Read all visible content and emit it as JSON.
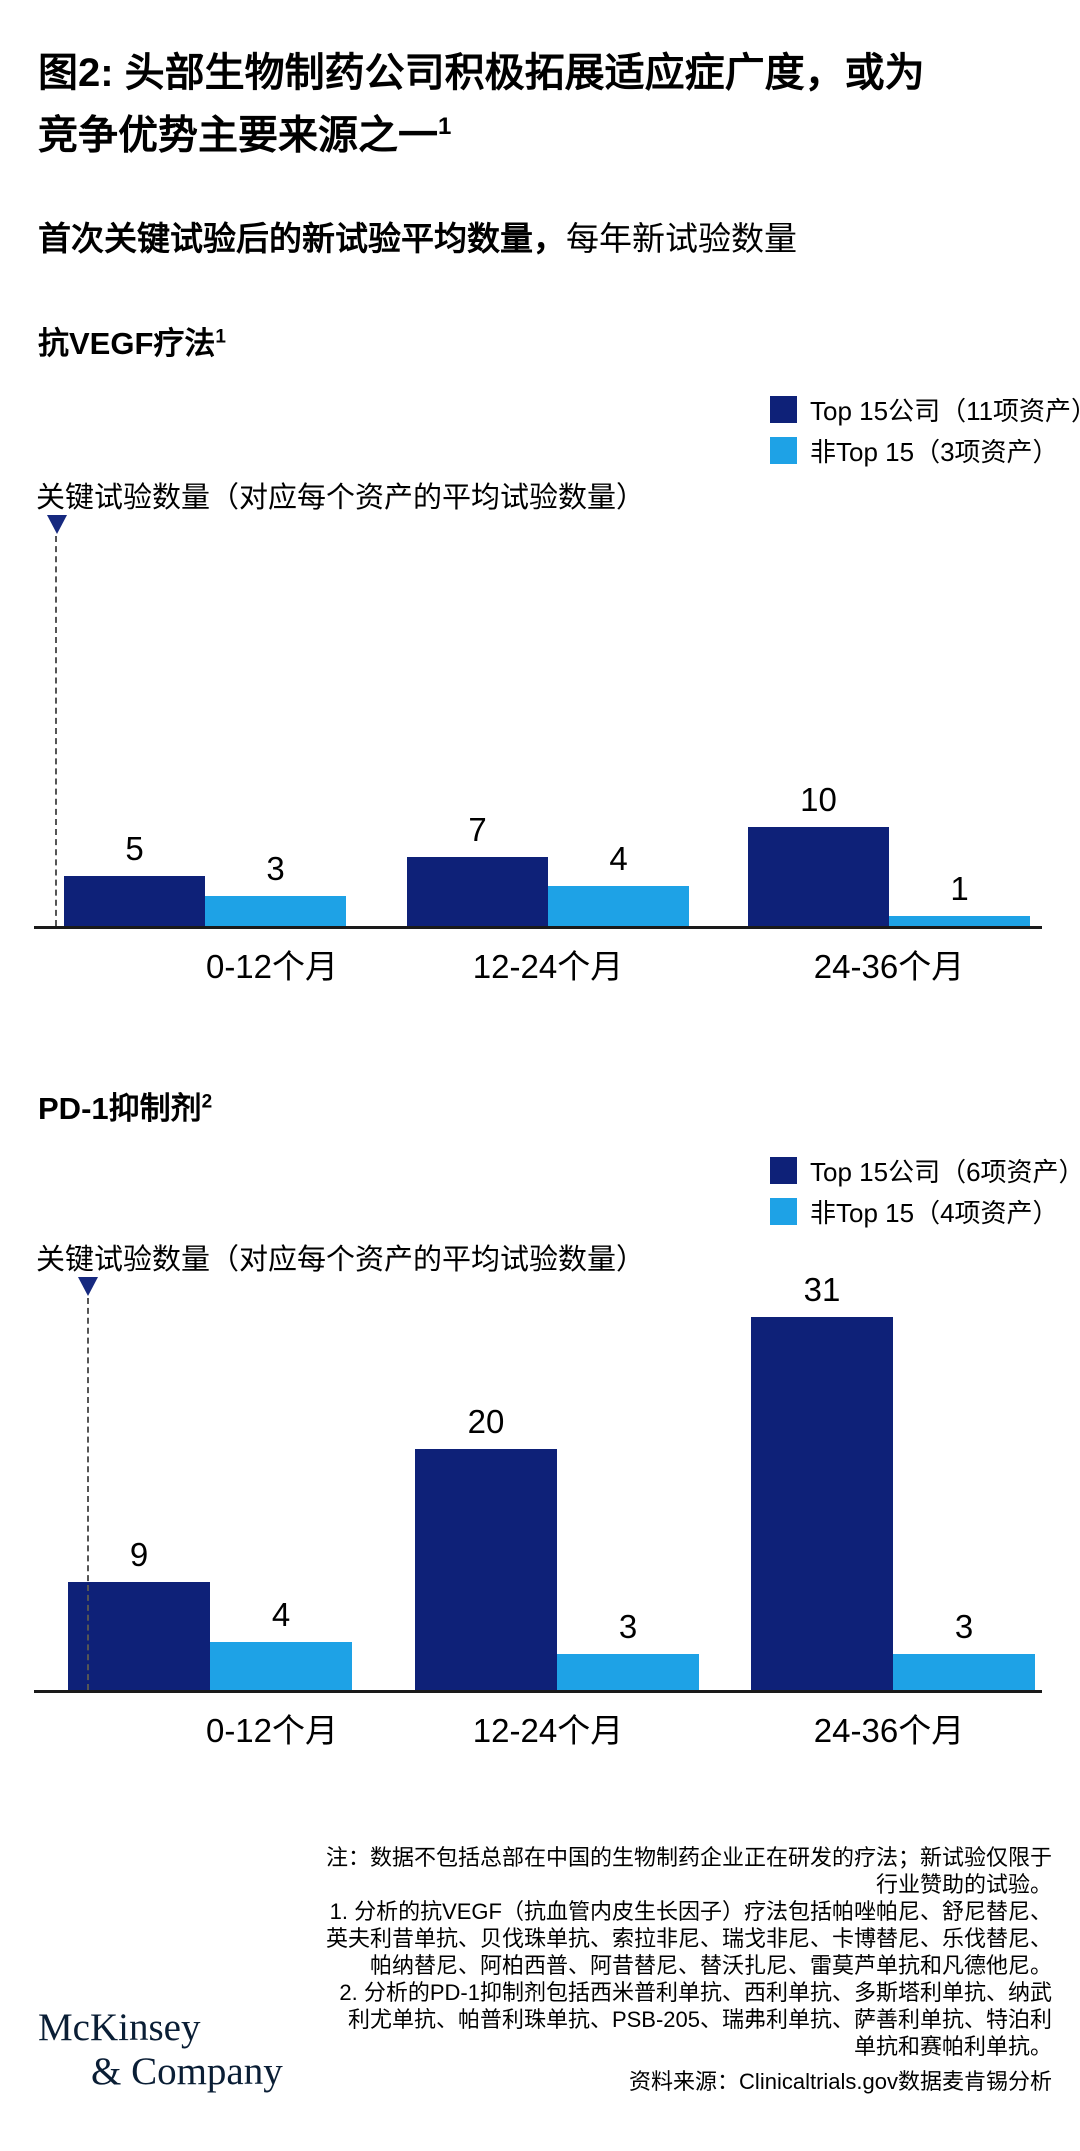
{
  "header": {
    "title_line1": "图2: 头部生物制药公司积极拓展适应症广度，或为",
    "title_line2": "竞争优势主要来源之一",
    "title_sup": "1",
    "subtitle_bold": "首次关键试验后的新试验平均数量，",
    "subtitle_regular": "每年新试验数量"
  },
  "sections": [
    {
      "title": "抗VEGF疗法",
      "title_sup": "1",
      "axis_label": "关键试验数量（对应每个资产的平均试验数量）",
      "legend": [
        {
          "label": "Top 15公司（11项资产）",
          "color": "#0E2178"
        },
        {
          "label": "非Top 15（3项资产）",
          "color": "#1EA2E6"
        }
      ]
    },
    {
      "title": "PD-1抑制剂",
      "title_sup": "2",
      "axis_label": "关键试验数量（对应每个资产的平均试验数量）",
      "legend": [
        {
          "label": "Top 15公司（6项资产）",
          "color": "#0E2178"
        },
        {
          "label": "非Top 15（4项资产）",
          "color": "#1EA2E6"
        }
      ]
    }
  ],
  "chart_data": [
    {
      "type": "bar",
      "title": "抗VEGF疗法",
      "categories": [
        "0-12个月",
        "12-24个月",
        "24-36个月"
      ],
      "series": [
        {
          "name": "Top 15公司（11项资产）",
          "color": "#0E2178",
          "values": [
            5,
            7,
            10
          ]
        },
        {
          "name": "非Top 15（3项资产）",
          "color": "#1EA2E6",
          "values": [
            3,
            4,
            1
          ]
        }
      ],
      "ylabel": "关键试验数量（对应每个资产的平均试验数量）",
      "xlabel": "",
      "ylim": [
        0,
        11
      ],
      "grid": false,
      "legend_position": "top-right"
    },
    {
      "type": "bar",
      "title": "PD-1抑制剂",
      "categories": [
        "0-12个月",
        "12-24个月",
        "24-36个月"
      ],
      "series": [
        {
          "name": "Top 15公司（6项资产）",
          "color": "#0E2178",
          "values": [
            9,
            20,
            31
          ]
        },
        {
          "name": "非Top 15（4项资产）",
          "color": "#1EA2E6",
          "values": [
            4,
            3,
            3
          ]
        }
      ],
      "ylabel": "关键试验数量（对应每个资产的平均试验数量）",
      "xlabel": "",
      "ylim": [
        0,
        33
      ],
      "grid": false,
      "legend_position": "top-right"
    }
  ],
  "footnotes": {
    "lines": [
      "注：数据不包括总部在中国的生物制药企业正在研发的疗法；新试验仅限于",
      "行业赞助的试验。",
      "1.  分析的抗VEGF（抗血管内皮生长因子）疗法包括帕唑帕尼、舒尼替尼、",
      "英夫利昔单抗、贝伐珠单抗、索拉非尼、瑞戈非尼、卡博替尼、乐伐替尼、",
      "帕纳替尼、阿柏西普、阿昔替尼、替沃扎尼、雷莫芦单抗和凡德他尼。",
      "2.  分析的PD-1抑制剂包括西米普利单抗、西利单抗、多斯塔利单抗、纳武",
      "利尤单抗、帕普利珠单抗、PSB-205、瑞弗利单抗、萨善利单抗、特泊利",
      "单抗和赛帕利单抗。"
    ],
    "source": "资料来源：Clinicaltrials.gov数据麦肯锡分析"
  },
  "logo": {
    "line1": "McKinsey",
    "line2": "& Company"
  },
  "colors": {
    "top15_bar": "#0E2178",
    "non_top15_bar": "#1EA2E6",
    "marker_triangle": "#16297F",
    "axis_line": "#1A1A1A",
    "logo_text": "#0A1E35"
  }
}
